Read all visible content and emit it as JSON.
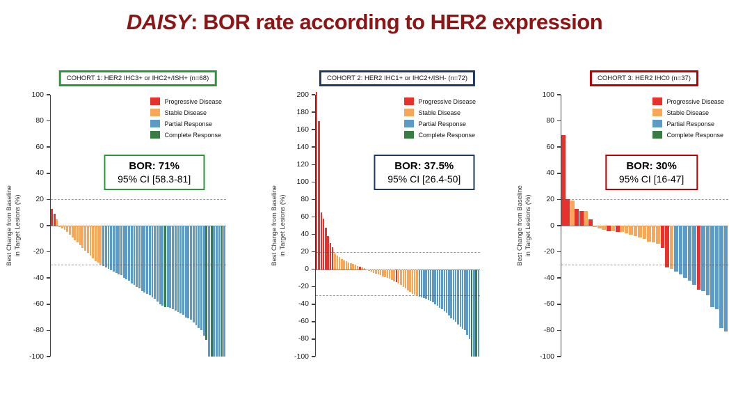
{
  "title": {
    "italic": "DAISY",
    "rest": ": BOR rate according to HER2 expression",
    "color": "#8c1515"
  },
  "y_axis_label": "Best Change from Baseline\nin Target Lesions (%)",
  "legend": [
    {
      "key": "PD",
      "label": "Progressive Disease",
      "color": "#e6312d"
    },
    {
      "key": "SD",
      "label": "Stable Disease",
      "color": "#f6a75a"
    },
    {
      "key": "PR",
      "label": "Partial Response",
      "color": "#5b9bc6"
    },
    {
      "key": "CR",
      "label": "Complete Response",
      "color": "#3a7d44"
    }
  ],
  "chart_data": [
    {
      "type": "bar",
      "variant": "waterfall",
      "header": "COHORT 1: HER2 IHC3+ or IHC2+/ISH+ (n=68)",
      "accent_color": "#2b9639",
      "bor_line1": "BOR: 71%",
      "bor_line2": "95% CI [58.3-81]",
      "n": 68,
      "ylim": [
        -100,
        100
      ],
      "yticks": [
        100,
        80,
        60,
        40,
        20,
        0,
        -20,
        -40,
        -60,
        -80,
        -100
      ],
      "ref_lines": [
        20,
        -30
      ],
      "bars": {
        "values": [
          13,
          9,
          5,
          -1,
          -2,
          -3,
          -5,
          -7,
          -9,
          -11,
          -13,
          -15,
          -17,
          -19,
          -21,
          -23,
          -25,
          -27,
          -28,
          -30,
          -31,
          -32,
          -33,
          -34,
          -35,
          -36,
          -37,
          -38,
          -40,
          -41,
          -42,
          -44,
          -45,
          -47,
          -48,
          -50,
          -51,
          -52,
          -53,
          -55,
          -56,
          -58,
          -60,
          -61,
          -62,
          -62,
          -63,
          -64,
          -65,
          -66,
          -67,
          -68,
          -70,
          -71,
          -72,
          -74,
          -76,
          -78,
          -80,
          -84,
          -87,
          -100,
          -100,
          -100,
          -100,
          -100,
          -100,
          -100
        ],
        "categories": [
          "PD",
          "PD",
          "SD",
          "SD",
          "SD",
          "SD",
          "SD",
          "SD",
          "SD",
          "SD",
          "SD",
          "SD",
          "SD",
          "SD",
          "SD",
          "SD",
          "SD",
          "SD",
          "SD",
          "SD",
          "PR",
          "PR",
          "PR",
          "PR",
          "PR",
          "PR",
          "PR",
          "PR",
          "PR",
          "PR",
          "PR",
          "PR",
          "PR",
          "PR",
          "PR",
          "PR",
          "PR",
          "PR",
          "PR",
          "PR",
          "PR",
          "PR",
          "PR",
          "PR",
          "CR",
          "PR",
          "PR",
          "PR",
          "PR",
          "PR",
          "PR",
          "PR",
          "PR",
          "PR",
          "PR",
          "PR",
          "PR",
          "PR",
          "PR",
          "PR",
          "CR",
          "PR",
          "CR",
          "PR",
          "PR",
          "PR",
          "CR",
          "PR"
        ]
      }
    },
    {
      "type": "bar",
      "variant": "waterfall",
      "header": "COHORT 2: HER2 IHC1+ or IHC2+/ISH- (n=72)",
      "accent_color": "#1f3864",
      "bor_line1": "BOR: 37.5%",
      "bor_line2": "95% CI [26.4-50]",
      "n": 72,
      "ylim": [
        -100,
        200
      ],
      "yticks": [
        200,
        180,
        160,
        140,
        120,
        100,
        80,
        60,
        40,
        20,
        0,
        -20,
        -40,
        -60,
        -80,
        -100
      ],
      "ref_lines": [
        20,
        -30
      ],
      "bars": {
        "values": [
          203,
          170,
          65,
          58,
          48,
          38,
          30,
          25,
          18,
          16,
          14,
          12,
          10,
          9,
          8,
          7,
          6,
          5,
          4,
          3,
          2,
          1,
          -1,
          -2,
          -3,
          -4,
          -5,
          -6,
          -7,
          -8,
          -9,
          -10,
          -11,
          -12,
          -14,
          -15,
          -16,
          -18,
          -20,
          -22,
          -24,
          -26,
          -28,
          -29,
          -30,
          -31,
          -32,
          -33,
          -34,
          -35,
          -36,
          -38,
          -40,
          -42,
          -44,
          -46,
          -48,
          -50,
          -53,
          -56,
          -58,
          -60,
          -63,
          -66,
          -68,
          -70,
          -75,
          -80,
          -100,
          -100,
          -100,
          -100
        ],
        "categories": [
          "PD",
          "PD",
          "PD",
          "PD",
          "PD",
          "PD",
          "PD",
          "PD",
          "SD",
          "SD",
          "SD",
          "SD",
          "SD",
          "SD",
          "SD",
          "SD",
          "SD",
          "SD",
          "SD",
          "PD",
          "SD",
          "SD",
          "SD",
          "SD",
          "SD",
          "SD",
          "SD",
          "SD",
          "SD",
          "SD",
          "SD",
          "SD",
          "SD",
          "SD",
          "SD",
          "PD",
          "SD",
          "SD",
          "SD",
          "SD",
          "SD",
          "SD",
          "SD",
          "SD",
          "SD",
          "PR",
          "PR",
          "PR",
          "PR",
          "PR",
          "PR",
          "PR",
          "PR",
          "PR",
          "PR",
          "PR",
          "PR",
          "PR",
          "PR",
          "PR",
          "PR",
          "PR",
          "PR",
          "PR",
          "PR",
          "PR",
          "PR",
          "PR",
          "CR",
          "PR",
          "CR",
          "PR"
        ]
      }
    },
    {
      "type": "bar",
      "variant": "waterfall",
      "header": "COHORT 3: HER2 IHC0  (n=37)",
      "accent_color": "#c00000",
      "bor_line1": "BOR: 30%",
      "bor_line2": "95% CI [16-47]",
      "n": 37,
      "ylim": [
        -100,
        100
      ],
      "yticks": [
        100,
        80,
        60,
        40,
        20,
        0,
        -20,
        -40,
        -60,
        -80,
        -100
      ],
      "ref_lines": [
        20,
        -30
      ],
      "bars": {
        "values": [
          69,
          20,
          19,
          13,
          11,
          11,
          5,
          -1,
          -2,
          -3,
          -4,
          -4,
          -5,
          -5,
          -6,
          -7,
          -8,
          -9,
          -10,
          -12,
          -13,
          -14,
          -17,
          -32,
          -33,
          -35,
          -37,
          -40,
          -42,
          -45,
          -49,
          -50,
          -53,
          -62,
          -64,
          -78,
          -81
        ],
        "categories": [
          "PD",
          "PD",
          "SD",
          "PD",
          "PD",
          "SD",
          "PD",
          "SD",
          "SD",
          "SD",
          "PD",
          "SD",
          "PD",
          "SD",
          "SD",
          "SD",
          "SD",
          "SD",
          "SD",
          "SD",
          "SD",
          "SD",
          "PD",
          "PD",
          "SD",
          "PR",
          "PR",
          "PR",
          "PR",
          "PR",
          "PD",
          "PR",
          "PR",
          "PR",
          "PR",
          "PR",
          "PR"
        ]
      }
    }
  ]
}
